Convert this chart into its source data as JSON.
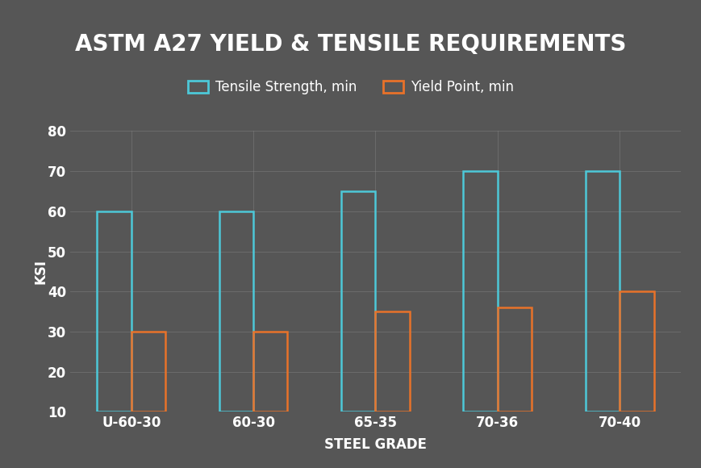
{
  "title": "ASTM A27 YIELD & TENSILE REQUIREMENTS",
  "xlabel": "STEEL GRADE",
  "ylabel": "KSI",
  "background_color": "#565656",
  "plot_bg_color": "#565656",
  "categories": [
    "U-60-30",
    "60-30",
    "65-35",
    "70-36",
    "70-40"
  ],
  "tensile": [
    60,
    60,
    65,
    70,
    70
  ],
  "yield": [
    30,
    30,
    35,
    36,
    40
  ],
  "tensile_color": "#4dc8d8",
  "yield_color": "#e8722a",
  "ylim": [
    10,
    80
  ],
  "yticks": [
    10,
    20,
    30,
    40,
    50,
    60,
    70,
    80
  ],
  "title_fontsize": 20,
  "axis_label_fontsize": 12,
  "tick_fontsize": 12,
  "legend_fontsize": 12,
  "bar_width": 0.28,
  "legend_tensile": "Tensile Strength, min",
  "legend_yield": "Yield Point, min",
  "grid_color": "#888888",
  "text_color": "#ffffff"
}
